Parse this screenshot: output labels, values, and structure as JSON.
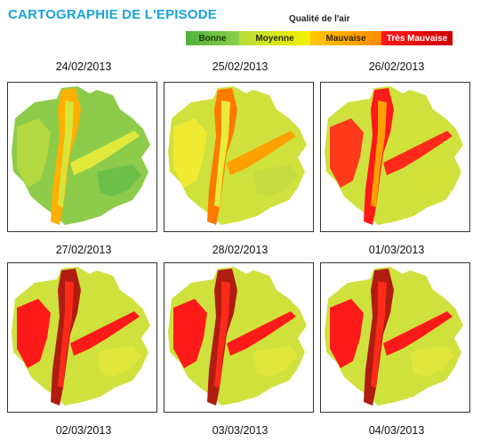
{
  "title": "CARTOGRAPHIE DE L'EPISODE",
  "legend": {
    "title": "Qualité de l'air",
    "items": [
      {
        "label": "Bonne",
        "color": "#6cc04a"
      },
      {
        "label": "Moyenne",
        "color": "#d8e83c"
      },
      {
        "label": "Mauvaise",
        "color": "#ff9f00"
      },
      {
        "label": "Très Mauvaise",
        "color": "#ff1a1a"
      }
    ]
  },
  "maps": [
    {
      "date": "24/02/2013",
      "level": "bonne-moyenne"
    },
    {
      "date": "25/02/2013",
      "level": "moyenne-mauvaise"
    },
    {
      "date": "26/02/2013",
      "level": "mauvaise-tres-mauvaise"
    },
    {
      "date": "27/02/2013",
      "level": "tres-mauvaise"
    },
    {
      "date": "28/02/2013",
      "level": "tres-mauvaise"
    },
    {
      "date": "01/03/2013",
      "level": "tres-mauvaise"
    },
    {
      "date": "02/03/2013",
      "level": "tres-mauvaise"
    },
    {
      "date": "03/03/2013",
      "level": "tres-mauvaise"
    },
    {
      "date": "04/03/2013",
      "level": "mauvaise-tres-mauvaise"
    }
  ]
}
